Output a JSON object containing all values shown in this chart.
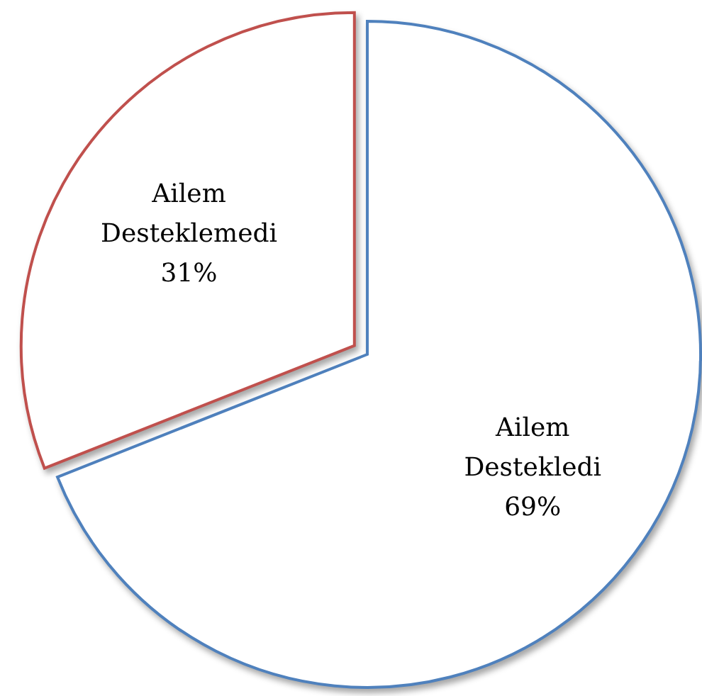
{
  "chart_data": {
    "type": "pie",
    "categories": [
      "Ailem Destekledi",
      "Ailem Desteklemedi"
    ],
    "values": [
      69,
      31
    ],
    "colors": [
      "#4f81bd",
      "#c0504d"
    ],
    "value_labels": [
      "69%",
      "31%"
    ]
  }
}
